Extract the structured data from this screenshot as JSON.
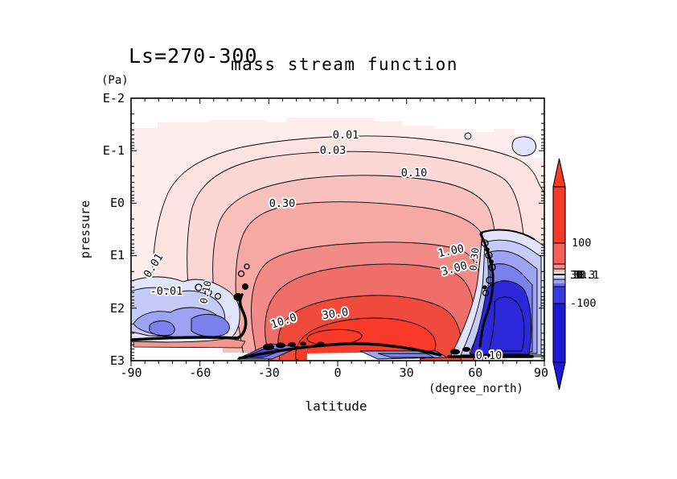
{
  "titles": {
    "left": "Ls=270-300",
    "main": "mass stream function"
  },
  "axes": {
    "y_unit": "(Pa)",
    "y_label": "pressure",
    "y_ticks": [
      "E-2",
      "E-1",
      "E0",
      "E1",
      "E2",
      "E3"
    ],
    "x_label": "latitude",
    "x_unit": "(degree_north)",
    "x_ticks": [
      "-90",
      "-60",
      "-30",
      "0",
      "30",
      "60",
      "90"
    ]
  },
  "colorbar": {
    "top_label": "100",
    "overlap_labels": [
      "30",
      "10",
      "3",
      "1",
      "0.3",
      "0.1"
    ],
    "bottom_label": "-100"
  },
  "contour_labels": [
    "0.01",
    "0.03",
    "0.10",
    "0.30",
    "1.00",
    "3.00",
    "30.0",
    "10.0",
    "0.01",
    "-0.01",
    "0.10",
    "0.30",
    "0.10"
  ],
  "palette": {
    "pos_lightest": "#fdeeed",
    "pos_01": "#fce3e1",
    "pos_03": "#fbd7d5",
    "pos_10": "#f8c1be",
    "pos_30": "#f5a8a4",
    "pos_1": "#f28b87",
    "pos_3": "#ef6e69",
    "pos_10b": "#f04a3c",
    "pos_core": "#f93a28",
    "neg_lightest": "#e2e4fb",
    "neg_2": "#c6caf7",
    "neg_3": "#9da3f0",
    "neg_4": "#7b81ea",
    "neg_5": "#4a4ae2",
    "neg_core": "#2c28da",
    "cbar_red": "#f93a28",
    "cbar_red2": "#fb5f55",
    "cbar_red3": "#fc8d85",
    "cbar_red4": "#fdb4ae",
    "cbar_pink": "#fde3e0",
    "cbar_lblue": "#e2e4fb",
    "cbar_lblue2": "#c6caf7",
    "cbar_mblue": "#9da3f0",
    "cbar_mblue2": "#6a6fe7",
    "cbar_blue": "#3a3ae2",
    "cbar_dblue": "#1c18da"
  },
  "chart_data": {
    "type": "contour",
    "title": "mass stream function",
    "season_label": "Ls=270-300",
    "xlabel": "latitude",
    "x_unit": "degree_north",
    "xlim": [
      -90,
      90
    ],
    "x_ticks": [
      -90,
      -60,
      -30,
      0,
      30,
      60,
      90
    ],
    "ylabel": "pressure",
    "y_unit": "Pa",
    "y_scale": "log",
    "ylim_pa": [
      0.01,
      1000
    ],
    "y_tick_labels": [
      "E-2",
      "E-1",
      "E0",
      "E1",
      "E2",
      "E3"
    ],
    "labeled_positive_levels": [
      0.01,
      0.03,
      0.1,
      0.3,
      1.0,
      3.0,
      10.0,
      30.0
    ],
    "labeled_negative_levels": [
      -0.01
    ],
    "colorbar_tick_values": [
      100,
      30,
      10,
      3,
      1,
      0.3,
      0.1,
      -100
    ],
    "features": [
      {
        "sign": "positive",
        "description": "dominant red cell enclosing levels up to >30, centered near latitude -10..25 at pressure ~100-700 Pa"
      },
      {
        "sign": "negative",
        "description": "blue cell near latitude -85..-40, pressure ~30-400 Pa, labeled -0.01"
      },
      {
        "sign": "negative",
        "description": "strong blue cell near latitude 50..90, pressure ~10-1000 Pa"
      },
      {
        "sign": "negative",
        "description": "small weak blue patch near latitude 75..85 at ~0.05-0.1 Pa"
      }
    ],
    "grid": false,
    "legend_position": "right colorbar with red (positive) up-arrow and blue (negative) down-arrow"
  }
}
